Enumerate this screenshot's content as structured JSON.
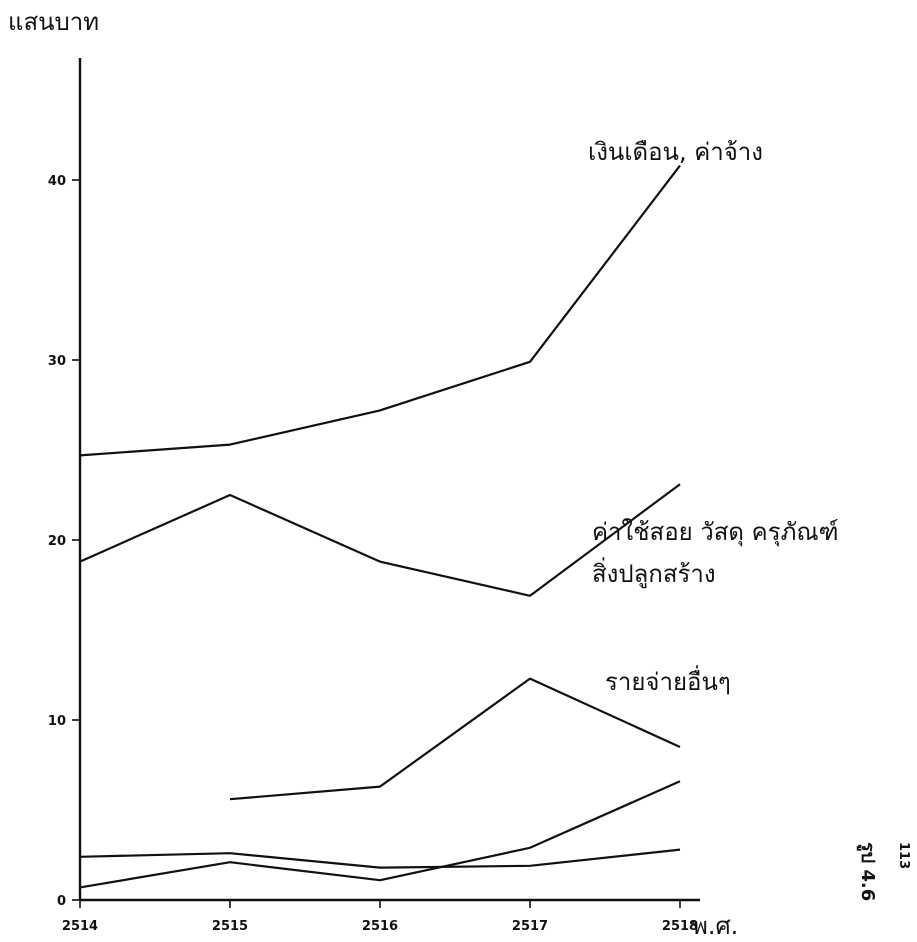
{
  "chart_data": {
    "type": "line",
    "ylabel": "แสนบาท",
    "xlabel": "พ.ศ.",
    "x": [
      2514,
      2515,
      2516,
      2517,
      2518
    ],
    "xtick_labels": [
      "2514",
      "2515",
      "2516",
      "2517",
      "2518"
    ],
    "yticks": [
      0,
      10,
      20,
      30,
      40
    ],
    "ytick_labels": [
      "0",
      "10",
      "20",
      "30",
      "40"
    ],
    "ylim": [
      0,
      50
    ],
    "grid": false,
    "series": [
      {
        "name": "เงินเดือน, ค่าจ้าง",
        "points": [
          [
            2514,
            24.7
          ],
          [
            2515,
            25.3
          ],
          [
            2516,
            27.2
          ],
          [
            2517,
            29.9
          ],
          [
            2518,
            40.8
          ]
        ]
      },
      {
        "name": "ค่าใช้สอย วัสดุ ครุภัณฑ์ สิ่งปลูกสร้าง",
        "points": [
          [
            2514,
            18.8
          ],
          [
            2515,
            22.5
          ],
          [
            2516,
            18.8
          ],
          [
            2517,
            16.9
          ],
          [
            2518,
            23.1
          ]
        ]
      },
      {
        "name": "รายจ่ายอื่นๆ",
        "points": [
          [
            2515,
            5.6
          ],
          [
            2516,
            6.3
          ],
          [
            2517,
            12.3
          ],
          [
            2518,
            8.5
          ]
        ]
      },
      {
        "name": "",
        "points": [
          [
            2514,
            0.7
          ],
          [
            2515,
            2.1
          ],
          [
            2516,
            1.1
          ],
          [
            2517,
            2.9
          ],
          [
            2518,
            6.6
          ]
        ]
      },
      {
        "name": "",
        "points": [
          [
            2514,
            2.4
          ],
          [
            2515,
            2.6
          ],
          [
            2516,
            1.8
          ],
          [
            2517,
            1.9
          ],
          [
            2518,
            2.8
          ]
        ]
      }
    ],
    "annotations": [
      {
        "text": "เงินเดือน, ค่าจ้าง"
      },
      {
        "text": "ค่าใช้สอย วัสดุ ครุภัณฑ์"
      },
      {
        "text": "สิ่งปลูกสร้าง"
      },
      {
        "text": "รายจ่ายอื่นๆ"
      }
    ]
  },
  "corner_text": "รูป 4.6",
  "page_number": "113"
}
